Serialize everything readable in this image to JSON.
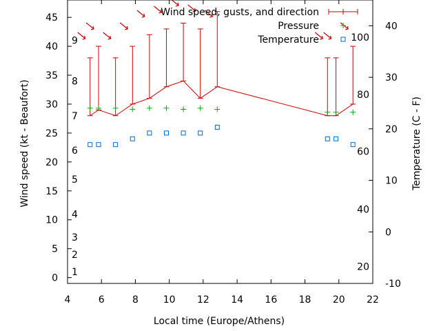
{
  "chart_data": {
    "type": "line",
    "title": "",
    "xlabel": "Local time (Europe/Athens)",
    "ylabel_left": "Wind speed (kt - Beaufort)",
    "ylabel_right": "Temperature (C - F)",
    "xlim": [
      4,
      22
    ],
    "xticks": [
      "4",
      "6",
      "8",
      "10",
      "12",
      "14",
      "16",
      "18",
      "20",
      "22"
    ],
    "y1lim": [
      -1,
      48
    ],
    "y1ticks": [
      "0",
      "5",
      "10",
      "15",
      "20",
      "25",
      "30",
      "35",
      "40",
      "45"
    ],
    "y2lim": [
      -10,
      45
    ],
    "y2ticks": [
      "-10",
      "0",
      "10",
      "20",
      "30",
      "40"
    ],
    "beaufort_labels": [
      {
        "text": "1",
        "kt": 1
      },
      {
        "text": "2",
        "kt": 4
      },
      {
        "text": "3",
        "kt": 7
      },
      {
        "text": "4",
        "kt": 11
      },
      {
        "text": "5",
        "kt": 17
      },
      {
        "text": "6",
        "kt": 22
      },
      {
        "text": "7",
        "kt": 28
      },
      {
        "text": "8",
        "kt": 34
      },
      {
        "text": "9",
        "kt": 41
      }
    ],
    "fahrenheit_labels": [
      {
        "text": "20",
        "c": -6.7
      },
      {
        "text": "40",
        "c": 4.4
      },
      {
        "text": "60",
        "c": 15.6
      },
      {
        "text": "80",
        "c": 26.7
      },
      {
        "text": "100",
        "c": 37.8
      }
    ],
    "legend_position": "top-right",
    "grid": false,
    "series": [
      {
        "name": "Wind speed, gusts, and direction",
        "color": "#cc0000",
        "axis": "left",
        "x": [
          5.33,
          5.83,
          6.83,
          7.83,
          8.83,
          9.83,
          10.83,
          11.83,
          12.83,
          19.33,
          19.83,
          20.83
        ],
        "values": [
          28,
          29,
          28,
          30,
          31,
          33,
          34,
          31,
          33,
          28,
          28,
          30
        ],
        "gusts": [
          38,
          40,
          38,
          40,
          42,
          43,
          44,
          43,
          46,
          38,
          38,
          40
        ],
        "direction_arrows": "wind-direction-arrow"
      },
      {
        "name": "Pressure",
        "color": "#00aa00",
        "axis": "left",
        "marker": "plus",
        "x": [
          5.33,
          5.83,
          6.83,
          7.83,
          8.83,
          9.83,
          10.83,
          11.83,
          12.83,
          19.33,
          19.83,
          20.83
        ],
        "values": [
          29.3,
          29.3,
          29.3,
          29.1,
          29.3,
          29.3,
          29.1,
          29.3,
          29.1,
          28.6,
          28.6,
          28.6
        ]
      },
      {
        "name": "Temperature",
        "color": "#0066cc",
        "axis": "left",
        "marker": "square",
        "x": [
          5.33,
          5.83,
          6.83,
          7.83,
          8.83,
          9.83,
          10.83,
          11.83,
          12.83,
          19.33,
          19.83,
          20.83
        ],
        "values": [
          23,
          23,
          23,
          24,
          25,
          25,
          25,
          25,
          26,
          24,
          24,
          23
        ]
      }
    ]
  }
}
